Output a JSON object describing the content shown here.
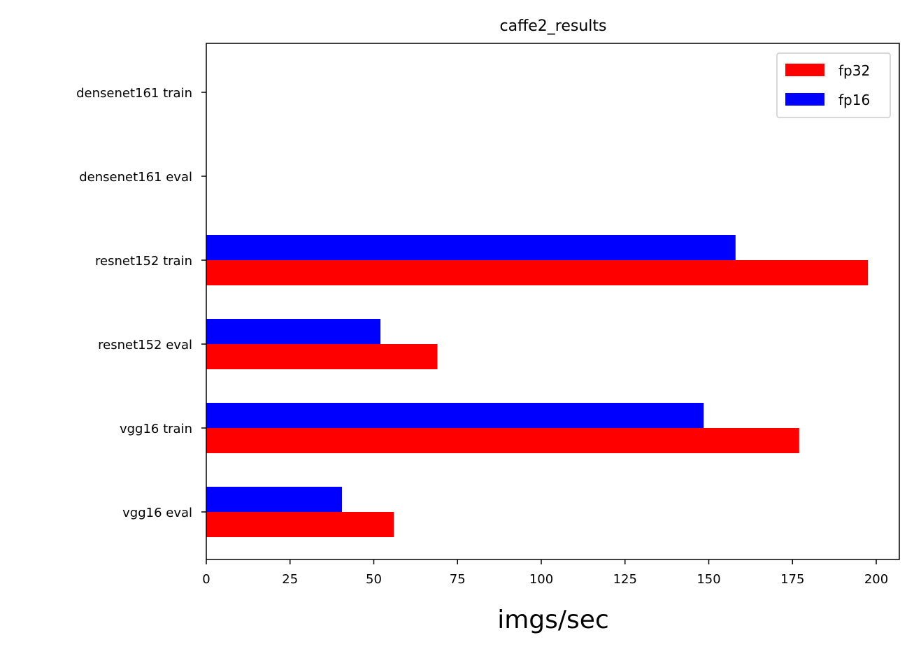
{
  "chart_data": {
    "type": "bar",
    "orientation": "horizontal",
    "title": "caffe2_results",
    "xlabel": "imgs/sec",
    "ylabel": "",
    "categories": [
      "vgg16 eval",
      "vgg16 train",
      "resnet152 eval",
      "resnet152 train",
      "densenet161 eval",
      "densenet161 train"
    ],
    "series": [
      {
        "name": "fp32",
        "color": "#ff0000",
        "values": [
          56,
          177,
          69,
          197.5,
          null,
          null
        ]
      },
      {
        "name": "fp16",
        "color": "#0000ff",
        "values": [
          40.5,
          148.5,
          52,
          158,
          null,
          null
        ]
      }
    ],
    "xlim": [
      0,
      207
    ],
    "xticks": [
      0,
      25,
      50,
      75,
      100,
      125,
      150,
      175,
      200
    ],
    "grid": false,
    "legend_position": "top-right"
  }
}
